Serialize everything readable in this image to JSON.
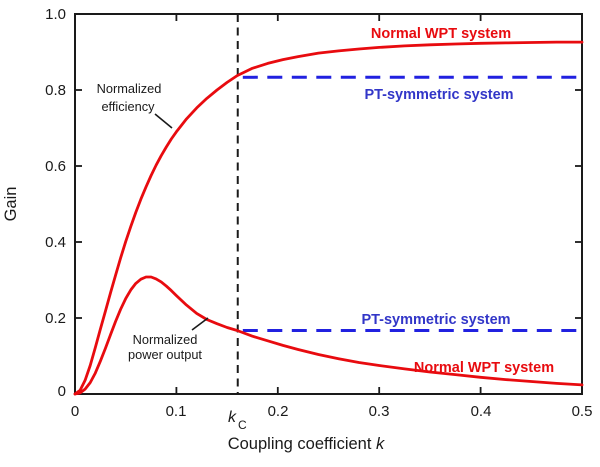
{
  "colors": {
    "normal_wpt": "#e80b0f",
    "pt_dash": "#2121e0",
    "pt_text": "#3236c8",
    "axis": "#1a1a1a"
  },
  "axis": {
    "x_tick_labels": [
      "0",
      "0.1",
      "0.2",
      "0.3",
      "0.4",
      "0.5"
    ],
    "y_tick_labels": [
      "1.0",
      "0.8",
      "0.6",
      "0.4",
      "0.2",
      "0"
    ],
    "xlabel_text": "Coupling coefficient ",
    "xlabel_italic": "k",
    "ylabel": "Gain"
  },
  "labels": {
    "normal_wpt_top": "Normal WPT system",
    "pt_symmetric_top": "PT-symmetric system",
    "pt_symmetric_bottom": "PT-symmetric system",
    "normal_wpt_bottom": "Normal WPT system",
    "efficiency_line1": "Normalized",
    "efficiency_line2": "efficiency",
    "power_line1": "Normalized",
    "power_line2": "power output",
    "kc_base": "k",
    "kc_sub": "C"
  },
  "chart_data": {
    "type": "line",
    "title": "",
    "xlabel": "Coupling coefficient k",
    "ylabel": "Gain",
    "xlim": [
      0,
      0.5
    ],
    "ylim": [
      0,
      1.0
    ],
    "x_ticks": [
      0,
      0.1,
      0.2,
      0.3,
      0.4,
      0.5
    ],
    "y_ticks": [
      0,
      0.2,
      0.4,
      0.6,
      0.8,
      1.0
    ],
    "grid": false,
    "legend_position": "inline-annotations",
    "critical_coupling": {
      "k": 0.1605,
      "label": "kC",
      "line_style": "black dashed vertical"
    },
    "series": [
      {
        "name": "Normal WPT system - normalized efficiency",
        "color": "#e80b0f",
        "style": "solid",
        "x": [
          0,
          0.005,
          0.01,
          0.015,
          0.02,
          0.025,
          0.03,
          0.035,
          0.04,
          0.045,
          0.05,
          0.055,
          0.06,
          0.065,
          0.07,
          0.075,
          0.08,
          0.085,
          0.09,
          0.095,
          0.1,
          0.11,
          0.12,
          0.13,
          0.14,
          0.15,
          0.16,
          0.175,
          0.19,
          0.205,
          0.22,
          0.24,
          0.26,
          0.28,
          0.3,
          0.325,
          0.35,
          0.375,
          0.4,
          0.425,
          0.45,
          0.475,
          0.5
        ],
        "y": [
          0,
          0.01,
          0.036,
          0.075,
          0.122,
          0.17,
          0.218,
          0.266,
          0.313,
          0.358,
          0.401,
          0.441,
          0.478,
          0.513,
          0.545,
          0.575,
          0.602,
          0.627,
          0.65,
          0.671,
          0.69,
          0.724,
          0.753,
          0.778,
          0.8,
          0.82,
          0.838,
          0.857,
          0.87,
          0.88,
          0.888,
          0.897,
          0.903,
          0.908,
          0.912,
          0.916,
          0.919,
          0.921,
          0.923,
          0.924,
          0.925,
          0.926,
          0.926
        ]
      },
      {
        "name": "Normal WPT system - normalized power output",
        "color": "#e80b0f",
        "style": "solid",
        "x": [
          0,
          0.005,
          0.01,
          0.015,
          0.02,
          0.025,
          0.03,
          0.035,
          0.04,
          0.045,
          0.05,
          0.055,
          0.06,
          0.065,
          0.07,
          0.075,
          0.08,
          0.085,
          0.09,
          0.095,
          0.1,
          0.11,
          0.12,
          0.13,
          0.14,
          0.15,
          0.16,
          0.175,
          0.19,
          0.205,
          0.22,
          0.24,
          0.26,
          0.28,
          0.3,
          0.325,
          0.35,
          0.375,
          0.4,
          0.425,
          0.45,
          0.475,
          0.5
        ],
        "y": [
          0,
          0.003,
          0.013,
          0.03,
          0.055,
          0.086,
          0.12,
          0.156,
          0.191,
          0.223,
          0.251,
          0.274,
          0.291,
          0.302,
          0.308,
          0.308,
          0.303,
          0.295,
          0.284,
          0.272,
          0.259,
          0.234,
          0.212,
          0.196,
          0.185,
          0.175,
          0.167,
          0.152,
          0.14,
          0.128,
          0.117,
          0.104,
          0.093,
          0.083,
          0.075,
          0.066,
          0.058,
          0.051,
          0.044,
          0.038,
          0.033,
          0.028,
          0.024
        ]
      },
      {
        "name": "PT-symmetric system - normalized efficiency",
        "color": "#2121e0",
        "style": "dashed",
        "x": [
          0.1655,
          0.5
        ],
        "y": [
          0.8335,
          0.8335
        ]
      },
      {
        "name": "PT-symmetric system - normalized power output",
        "color": "#2121e0",
        "style": "dashed",
        "x": [
          0.1655,
          0.5
        ],
        "y": [
          0.167,
          0.167
        ]
      }
    ],
    "annotations": [
      {
        "text": "Normalized efficiency",
        "points_to": "upper red curve"
      },
      {
        "text": "Normalized power output",
        "points_to": "lower red curve"
      },
      {
        "text": "Normal WPT system",
        "applies_to": "red solid curves"
      },
      {
        "text": "PT-symmetric system",
        "applies_to": "blue dashed lines"
      },
      {
        "text": "kC",
        "meaning": "critical coupling",
        "x": 0.1605
      }
    ]
  }
}
